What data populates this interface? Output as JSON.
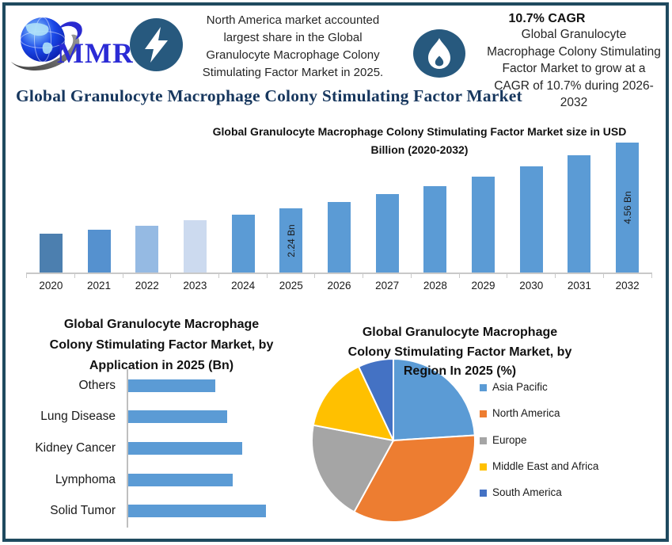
{
  "page_title": "Global Granulocyte Macrophage Colony Stimulating Factor Market",
  "header": {
    "logo_text": "MMR",
    "highlight1": {
      "icon": "lightning-icon",
      "text": "North America market accounted\nlargest share in the Global\nGranulocyte Macrophage Colony\nStimulating Factor Market in 2025."
    },
    "highlight2": {
      "icon": "flame-icon",
      "cagr_title": "10.7% CAGR",
      "text": "Global Granulocyte\nMacrophage Colony Stimulating\nFactor Market to grow at a\nCAGR of 10.7% during 2026-\n2032"
    }
  },
  "chart_data": [
    {
      "type": "bar",
      "title": "Global Granulocyte Macrophage Colony Stimulating Factor Market size in USD\nBillion (2020-2032)",
      "categories": [
        2020,
        2021,
        2022,
        2023,
        2024,
        2025,
        2026,
        2027,
        2028,
        2029,
        2030,
        2031,
        2032
      ],
      "values": [
        1.35,
        1.49,
        1.65,
        1.83,
        2.02,
        2.24,
        2.48,
        2.74,
        3.04,
        3.36,
        3.72,
        4.12,
        4.56
      ],
      "unit": "USD Bn",
      "values_estimated_except_labeled": true,
      "bar_labels": {
        "2025": "2.24 Bn",
        "2032": "4.56 Bn"
      },
      "bar_colors": [
        "#4C7FAF",
        "#5591CF",
        "#95BAE3",
        "#CCDAEF",
        "#5B9BD5",
        "#5B9BD5",
        "#5B9BD5",
        "#5B9BD5",
        "#5B9BD5",
        "#5B9BD5",
        "#5B9BD5",
        "#5B9BD5",
        "#5B9BD5"
      ],
      "ylim": [
        0,
        4.8
      ],
      "grid": false,
      "legend_position": "none"
    },
    {
      "type": "bar",
      "orientation": "horizontal",
      "title": "Global Granulocyte Macrophage\nColony Stimulating Factor Market, by\nApplication in 2025 (Bn)",
      "categories": [
        "Others",
        "Lung Disease",
        "Kidney Cancer",
        "Lymphoma",
        "Solid Tumor"
      ],
      "values": [
        0.36,
        0.41,
        0.47,
        0.43,
        0.57
      ],
      "unit": "USD Bn",
      "values_estimated": true,
      "bar_color": "#5B9BD5",
      "grid": false,
      "legend_position": "none"
    },
    {
      "type": "pie",
      "title": "Global Granulocyte Macrophage\nColony Stimulating Factor Market, by\nRegion In 2025 (%)",
      "labels": [
        "Asia Pacific",
        "North America",
        "Europe",
        "Middle East and Africa",
        "South America"
      ],
      "values": [
        24,
        34,
        20,
        15,
        7
      ],
      "unit": "%",
      "values_estimated": true,
      "colors": [
        "#5B9BD5",
        "#ED7D31",
        "#A5A5A5",
        "#FFC000",
        "#4472C4"
      ],
      "start_angle": "top",
      "direction": "clockwise",
      "legend_position": "right"
    }
  ],
  "colors": {
    "page_border": "#1F4A5F",
    "title_navy": "#17375E",
    "icon_circle": "#27597E",
    "axis_gray": "#C9C9C9",
    "accent_blue": "#5B9BD5"
  }
}
